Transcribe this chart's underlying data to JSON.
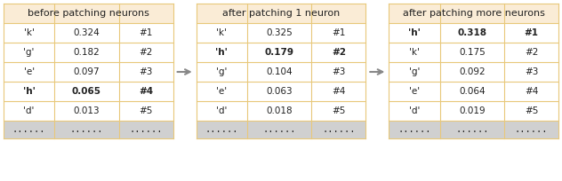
{
  "tables": [
    {
      "title": "before patching neurons",
      "rows": [
        [
          "'k'",
          "0.324",
          "#1"
        ],
        [
          "'g'",
          "0.182",
          "#2"
        ],
        [
          "'e'",
          "0.097",
          "#3"
        ],
        [
          "'h'",
          "0.065",
          "#4"
        ],
        [
          "'d'",
          "0.013",
          "#5"
        ],
        [
          "......",
          "......",
          "......"
        ]
      ],
      "bold_rows": [
        3
      ],
      "header_bg": "#faecd6",
      "row_bg": "#ffffff",
      "last_row_bg": "#d0d0d0"
    },
    {
      "title": "after patching 1 neuron",
      "rows": [
        [
          "'k'",
          "0.325",
          "#1"
        ],
        [
          "'h'",
          "0.179",
          "#2"
        ],
        [
          "'g'",
          "0.104",
          "#3"
        ],
        [
          "'e'",
          "0.063",
          "#4"
        ],
        [
          "'d'",
          "0.018",
          "#5"
        ],
        [
          "......",
          "......",
          "......"
        ]
      ],
      "bold_rows": [
        1
      ],
      "header_bg": "#faecd6",
      "row_bg": "#ffffff",
      "last_row_bg": "#d0d0d0"
    },
    {
      "title": "after patching more neurons",
      "rows": [
        [
          "'h'",
          "0.318",
          "#1"
        ],
        [
          "'k'",
          "0.175",
          "#2"
        ],
        [
          "'g'",
          "0.092",
          "#3"
        ],
        [
          "'e'",
          "0.064",
          "#4"
        ],
        [
          "'d'",
          "0.019",
          "#5"
        ],
        [
          "......",
          "......",
          "......"
        ]
      ],
      "bold_rows": [
        0
      ],
      "header_bg": "#faecd6",
      "row_bg": "#ffffff",
      "last_row_bg": "#d0d0d0"
    }
  ],
  "arrow_color": "#888888",
  "border_color": "#e8c87a",
  "text_color": "#222222",
  "font_size": 7.5,
  "title_font_size": 8.0,
  "figure_bg": "#ffffff"
}
